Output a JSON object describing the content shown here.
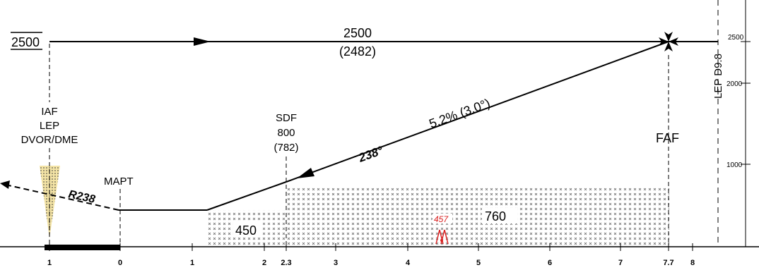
{
  "chart": {
    "altitude_box": "2500",
    "level_alt": "2500",
    "level_alt_msl": "(2482)",
    "gradient": "5.2% (3.0°)",
    "course": "238°",
    "radial": "R238",
    "fix_iaf": {
      "lines": [
        "IAF",
        "LEP",
        "DVOR/DME"
      ]
    },
    "fix_sdf": {
      "lines": [
        "SDF",
        "800",
        "(782)"
      ]
    },
    "fix_mapt": "MAPT",
    "fix_faf": "FAF",
    "fix_lep_d98": "LEP D9.8",
    "obstacle_alt": "457",
    "moca": {
      "left": "450",
      "right": "760"
    },
    "dist_ticks": [
      "1",
      "0",
      "1",
      "2",
      "2.3",
      "3",
      "4",
      "5",
      "6",
      "7",
      "7.7",
      "8"
    ],
    "alt_scale": [
      "2500",
      "2000",
      "1000"
    ],
    "colors": {
      "line": "#000000",
      "cone": "#f4e4a6",
      "obstacle": "#d92020",
      "hatch": "#555555"
    }
  }
}
